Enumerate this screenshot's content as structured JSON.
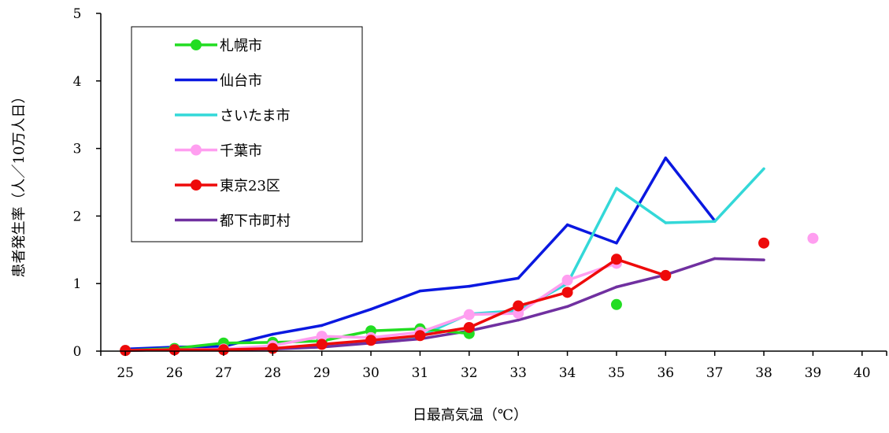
{
  "chart_data": {
    "type": "line",
    "title": "",
    "xlabel": "日最高気温（℃）",
    "ylabel": "患者発生率（人／10万人日）",
    "xlim": [
      24.5,
      40.5
    ],
    "ylim": [
      0,
      5
    ],
    "x_ticks": [
      "25",
      "26",
      "27",
      "28",
      "29",
      "30",
      "31",
      "32",
      "33",
      "34",
      "35",
      "36",
      "37",
      "38",
      "39",
      "40"
    ],
    "y_ticks": [
      "0",
      "1",
      "2",
      "3",
      "4",
      "5"
    ],
    "grid": false,
    "legend": "top-left",
    "series": [
      {
        "name": "札幌市",
        "color": "#22dd22",
        "marker": "circle",
        "line": true,
        "points": [
          [
            25,
            0.01
          ],
          [
            26,
            0.04
          ],
          [
            27,
            0.12
          ],
          [
            28,
            0.13
          ],
          [
            29,
            0.15
          ],
          [
            30,
            0.3
          ],
          [
            31,
            0.33
          ],
          [
            32,
            0.26
          ],
          [
            35,
            0.69
          ]
        ]
      },
      {
        "name": "仙台市",
        "color": "#0a18e0",
        "marker": "none",
        "line": true,
        "points": [
          [
            25,
            0.03
          ],
          [
            26,
            0.06
          ],
          [
            27,
            0.07
          ],
          [
            28,
            0.25
          ],
          [
            29,
            0.38
          ],
          [
            30,
            0.62
          ],
          [
            31,
            0.89
          ],
          [
            32,
            0.96
          ],
          [
            33,
            1.08
          ],
          [
            34,
            1.87
          ],
          [
            35,
            1.6
          ],
          [
            36,
            2.86
          ],
          [
            37,
            1.93
          ]
        ]
      },
      {
        "name": "さいたま市",
        "color": "#33d8d8",
        "marker": "none",
        "line": true,
        "points": [
          [
            25,
            0.01
          ],
          [
            26,
            0.02
          ],
          [
            27,
            0.03
          ],
          [
            28,
            0.04
          ],
          [
            29,
            0.08
          ],
          [
            30,
            0.14
          ],
          [
            31,
            0.22
          ],
          [
            32,
            0.55
          ],
          [
            33,
            0.6
          ],
          [
            34,
            1.0
          ],
          [
            35,
            2.41
          ],
          [
            36,
            1.9
          ],
          [
            37,
            1.92
          ],
          [
            38,
            2.7
          ]
        ]
      },
      {
        "name": "千葉市",
        "color": "#ff9ef0",
        "marker": "circle",
        "line": true,
        "points": [
          [
            25,
            0.01
          ],
          [
            26,
            0.02
          ],
          [
            27,
            0.03
          ],
          [
            28,
            0.08
          ],
          [
            29,
            0.22
          ],
          [
            30,
            0.2
          ],
          [
            31,
            0.28
          ],
          [
            32,
            0.54
          ],
          [
            33,
            0.56
          ],
          [
            34,
            1.05
          ],
          [
            35,
            1.3
          ],
          [
            39,
            1.67
          ]
        ]
      },
      {
        "name": "東京23区",
        "color": "#ee0a0a",
        "marker": "circle",
        "line": true,
        "points": [
          [
            25,
            0.01
          ],
          [
            26,
            0.02
          ],
          [
            27,
            0.02
          ],
          [
            28,
            0.04
          ],
          [
            29,
            0.1
          ],
          [
            30,
            0.16
          ],
          [
            31,
            0.23
          ],
          [
            32,
            0.35
          ],
          [
            33,
            0.67
          ],
          [
            34,
            0.87
          ],
          [
            35,
            1.36
          ],
          [
            36,
            1.12
          ],
          [
            38,
            1.6
          ]
        ]
      },
      {
        "name": "都下市町村",
        "color": "#7030a0",
        "marker": "none",
        "line": true,
        "points": [
          [
            25,
            0.01
          ],
          [
            26,
            0.02
          ],
          [
            27,
            0.02
          ],
          [
            28,
            0.03
          ],
          [
            29,
            0.06
          ],
          [
            30,
            0.12
          ],
          [
            31,
            0.18
          ],
          [
            32,
            0.3
          ],
          [
            33,
            0.46
          ],
          [
            34,
            0.66
          ],
          [
            35,
            0.95
          ],
          [
            36,
            1.13
          ],
          [
            37,
            1.37
          ],
          [
            38,
            1.35
          ]
        ]
      }
    ]
  }
}
